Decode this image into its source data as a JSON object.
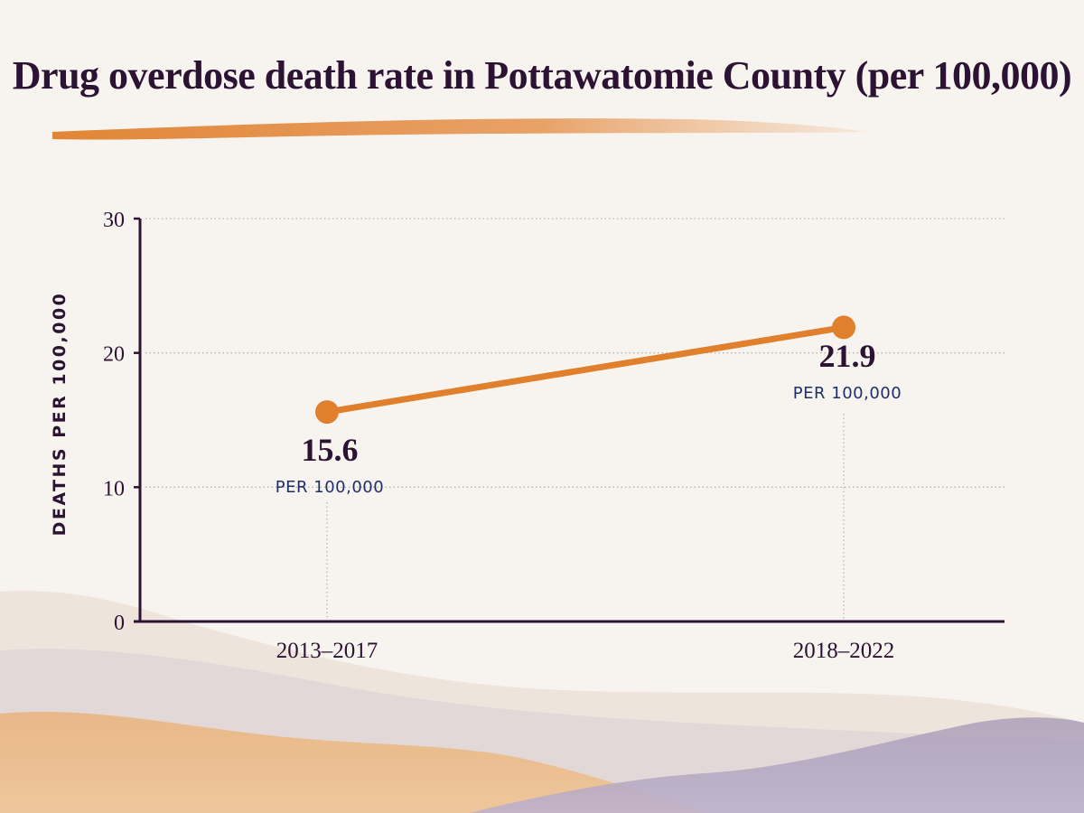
{
  "chart_data": {
    "type": "line",
    "title": "Drug overdose death rate in Pottawatomie County (per 100,000)",
    "ylabel": "DEATHS PER 100,000",
    "xlabel": "",
    "categories": [
      "2013–2017",
      "2018–2022"
    ],
    "series": [
      {
        "values": [
          15.6,
          21.9
        ]
      }
    ],
    "data_labels": [
      "15.6",
      "21.9"
    ],
    "data_label_unit": "PER 100,000",
    "ylim": [
      0,
      30
    ],
    "yticks": [
      0,
      10,
      20,
      30
    ],
    "ytick_labels": [
      "0",
      "10",
      "20",
      "30"
    ],
    "grid": "horizontal dotted",
    "legend": "none"
  },
  "colors": {
    "title": "#2c1233",
    "axis": "#2c1233",
    "line": "#e07f2c",
    "unit_label": "#1f2f6b",
    "grid": "#b8b2ab",
    "background": "#f7f4ef"
  }
}
